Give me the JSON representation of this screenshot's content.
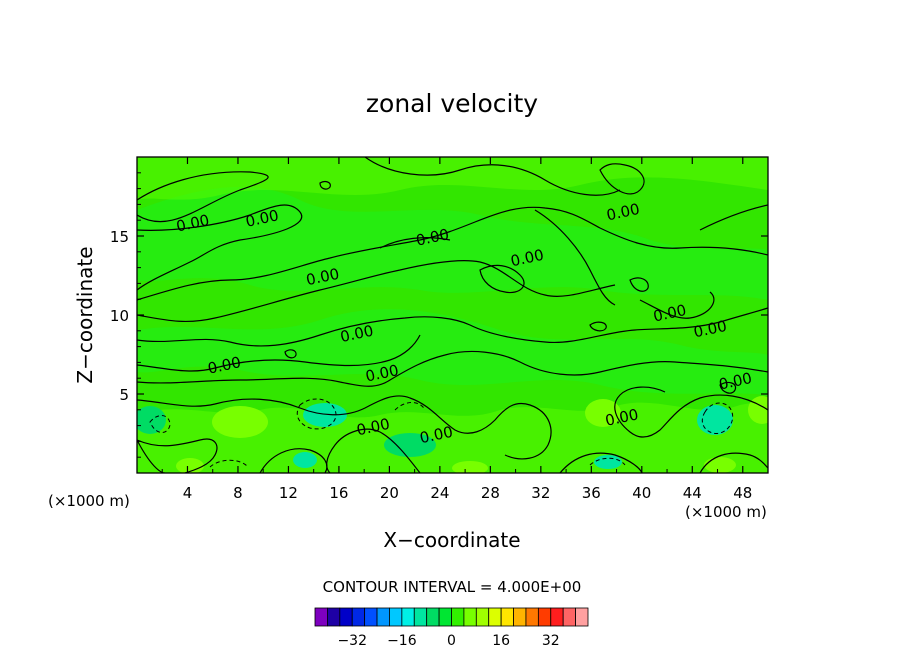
{
  "chart_data": {
    "type": "heatmap",
    "title": "zonal velocity",
    "xlabel": "X−coordinate",
    "ylabel": "Z−coordinate",
    "x_unit": "(×1000 m)",
    "y_unit": "(×1000 m)",
    "xlim": [
      0,
      50
    ],
    "ylim": [
      0,
      20
    ],
    "x_ticks": [
      4,
      8,
      12,
      16,
      20,
      24,
      28,
      32,
      36,
      40,
      44,
      48
    ],
    "y_ticks": [
      5,
      10,
      15
    ],
    "contour_interval_text": "CONTOUR INTERVAL = 4.000E+00",
    "contour_labels": [
      {
        "text": "0.00",
        "x": 4.5,
        "z": 15.5
      },
      {
        "text": "0.00",
        "x": 10,
        "z": 15.8
      },
      {
        "text": "0.00",
        "x": 14.8,
        "z": 12.1
      },
      {
        "text": "0.00",
        "x": 23.5,
        "z": 14.6
      },
      {
        "text": "0.00",
        "x": 31,
        "z": 13.3
      },
      {
        "text": "0.00",
        "x": 38.6,
        "z": 16.2
      },
      {
        "text": "0.00",
        "x": 42.3,
        "z": 9.8
      },
      {
        "text": "0.00",
        "x": 45.5,
        "z": 8.8
      },
      {
        "text": "0.00",
        "x": 17.5,
        "z": 8.5
      },
      {
        "text": "0.00",
        "x": 7,
        "z": 6.5
      },
      {
        "text": "0.00",
        "x": 19.5,
        "z": 6
      },
      {
        "text": "0.00",
        "x": 47.5,
        "z": 5.5
      },
      {
        "text": "0.00",
        "x": 18.8,
        "z": 2.6
      },
      {
        "text": "0.00",
        "x": 23.8,
        "z": 2.1
      },
      {
        "text": "0.00",
        "x": 38.5,
        "z": 3.2
      }
    ],
    "colorbar": {
      "colors": [
        "#7d00bf",
        "#1e00a5",
        "#0000c8",
        "#0028e6",
        "#0050ff",
        "#0096ff",
        "#00c8ff",
        "#00f0e6",
        "#00e6a0",
        "#00dc64",
        "#00e632",
        "#32f000",
        "#78ff00",
        "#a0ff00",
        "#dcff00",
        "#ffe600",
        "#ffb400",
        "#ff7800",
        "#ff3c00",
        "#ff1e1e",
        "#ff6464",
        "#ffa0a0"
      ],
      "ticks": [
        -32,
        -16,
        0,
        16,
        32
      ],
      "tick_labels": [
        "−32",
        "−16",
        "0",
        "16",
        "32"
      ],
      "range": [
        -44,
        44
      ]
    }
  }
}
